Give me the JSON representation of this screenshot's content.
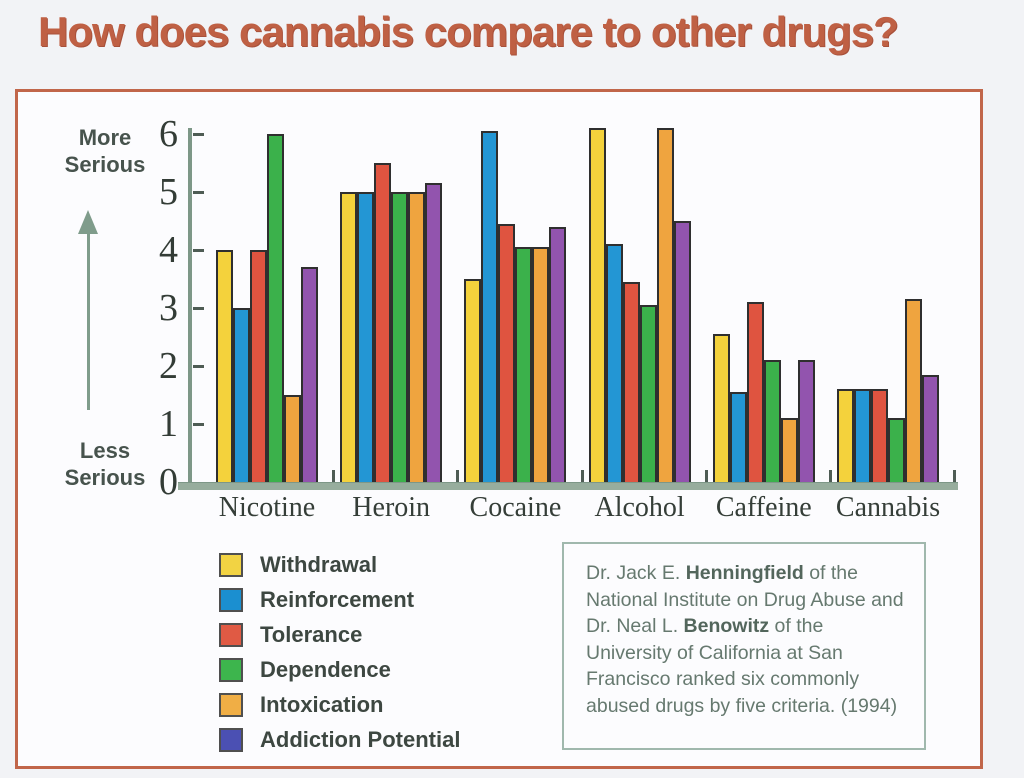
{
  "title": "How does cannabis compare to other drugs?",
  "accent_colors": {
    "title": "#bf6044",
    "frame_border": "#c1664a",
    "axis": "#7d9787"
  },
  "y_axis": {
    "top_label": "More Serious",
    "bottom_label": "Less Serious"
  },
  "chart_data": {
    "type": "bar",
    "title": "How does cannabis compare to other drugs?",
    "xlabel": "",
    "ylabel": "Seriousness (Less Serious → More Serious)",
    "ylim": [
      0,
      6
    ],
    "yticks": [
      0,
      1,
      2,
      3,
      4,
      5,
      6
    ],
    "grid": false,
    "legend_position": "bottom-left",
    "categories": [
      "Nicotine",
      "Heroin",
      "Cocaine",
      "Alcohol",
      "Caffeine",
      "Cannabis"
    ],
    "series": [
      {
        "name": "Withdrawal",
        "color": "#f4d23c",
        "legend_color": "#f2d343",
        "values": [
          4.0,
          5.0,
          3.5,
          6.1,
          2.55,
          1.6
        ]
      },
      {
        "name": "Reinforcement",
        "color": "#2396d4",
        "legend_color": "#1b8fd0",
        "values": [
          3.0,
          5.0,
          6.05,
          4.1,
          1.55,
          1.6
        ]
      },
      {
        "name": "Tolerance",
        "color": "#df5440",
        "legend_color": "#e05a44",
        "values": [
          4.0,
          5.5,
          4.45,
          3.45,
          3.1,
          1.6
        ]
      },
      {
        "name": "Dependence",
        "color": "#3bb14b",
        "legend_color": "#3db54d",
        "values": [
          6.0,
          5.0,
          4.05,
          3.05,
          2.1,
          1.1
        ]
      },
      {
        "name": "Intoxication",
        "color": "#efa43f",
        "legend_color": "#f0ae45",
        "values": [
          1.5,
          5.0,
          4.05,
          6.1,
          1.1,
          3.15
        ]
      },
      {
        "name": "Addiction Potential",
        "color": "#9254ae",
        "legend_color": "#4b50b3",
        "values": [
          3.7,
          5.15,
          4.4,
          4.5,
          2.1,
          1.85
        ]
      }
    ]
  },
  "source_box": {
    "segments": [
      {
        "text": "Dr. Jack E. ",
        "bold": false
      },
      {
        "text": "Henningfield",
        "bold": true
      },
      {
        "text": " of the National Institute on Drug Abuse and Dr. Neal L. ",
        "bold": false
      },
      {
        "text": "Benowitz",
        "bold": true
      },
      {
        "text": " of the University of California at San Francisco ranked six commonly abused drugs by five criteria. (1994)",
        "bold": false
      }
    ]
  }
}
